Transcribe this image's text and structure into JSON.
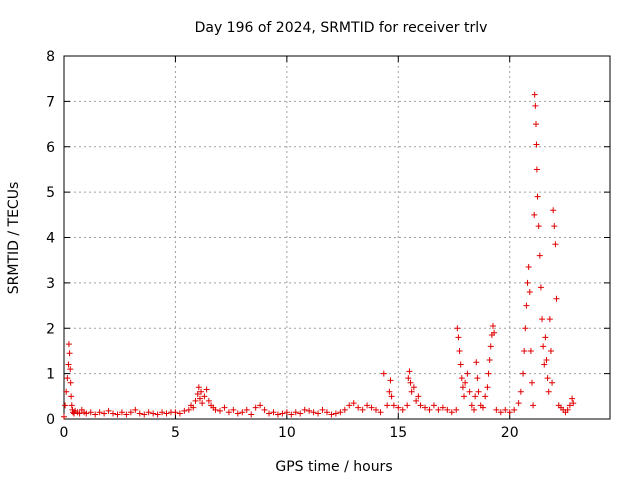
{
  "chart_data": {
    "type": "scatter",
    "title": "Day 196 of 2024, SRMTID for receiver trlv",
    "xlabel": "GPS time / hours",
    "ylabel": "SRMTID / TECUs",
    "xlim": [
      0,
      24.5
    ],
    "ylim": [
      0,
      8
    ],
    "xticks": [
      0,
      5,
      10,
      15,
      20
    ],
    "yticks": [
      0,
      1,
      2,
      3,
      4,
      5,
      6,
      7,
      8
    ],
    "xtick_labels": [
      "0",
      "5",
      "10",
      "15",
      "20"
    ],
    "ytick_labels": [
      "0",
      "1",
      "2",
      "3",
      "4",
      "5",
      "6",
      "7",
      "8"
    ],
    "grid": true,
    "marker": "+",
    "color": "#e00000",
    "series": [
      {
        "name": "SRMTID",
        "x": [
          0.0,
          0.05,
          0.1,
          0.15,
          0.2,
          0.22,
          0.25,
          0.28,
          0.3,
          0.32,
          0.35,
          0.38,
          0.4,
          0.45,
          0.5,
          0.6,
          0.7,
          0.8,
          0.9,
          1.0,
          1.2,
          1.4,
          1.6,
          1.8,
          2.0,
          2.2,
          2.4,
          2.6,
          2.8,
          3.0,
          3.2,
          3.4,
          3.6,
          3.8,
          4.0,
          4.2,
          4.4,
          4.6,
          4.8,
          5.0,
          5.2,
          5.4,
          5.6,
          5.7,
          5.8,
          5.9,
          6.0,
          6.05,
          6.1,
          6.15,
          6.2,
          6.3,
          6.4,
          6.5,
          6.6,
          6.7,
          6.8,
          7.0,
          7.2,
          7.4,
          7.6,
          7.8,
          8.0,
          8.2,
          8.4,
          8.6,
          8.8,
          9.0,
          9.2,
          9.4,
          9.6,
          9.8,
          10.0,
          10.2,
          10.4,
          10.6,
          10.8,
          11.0,
          11.2,
          11.4,
          11.6,
          11.8,
          12.0,
          12.2,
          12.4,
          12.6,
          12.8,
          13.0,
          13.2,
          13.4,
          13.6,
          13.8,
          14.0,
          14.2,
          14.35,
          14.5,
          14.6,
          14.65,
          14.7,
          14.8,
          15.0,
          15.2,
          15.4,
          15.45,
          15.5,
          15.55,
          15.6,
          15.7,
          15.8,
          15.9,
          16.0,
          16.2,
          16.4,
          16.6,
          16.8,
          17.0,
          17.2,
          17.4,
          17.6,
          17.65,
          17.7,
          17.75,
          17.8,
          17.85,
          17.9,
          17.95,
          18.0,
          18.1,
          18.2,
          18.3,
          18.4,
          18.45,
          18.5,
          18.55,
          18.6,
          18.7,
          18.8,
          18.9,
          19.0,
          19.05,
          19.1,
          19.15,
          19.2,
          19.25,
          19.3,
          19.4,
          19.6,
          19.8,
          20.0,
          20.2,
          20.4,
          20.5,
          20.6,
          20.65,
          20.7,
          20.75,
          20.8,
          20.85,
          20.9,
          20.95,
          21.0,
          21.05,
          21.1,
          21.12,
          21.15,
          21.18,
          21.2,
          21.22,
          21.25,
          21.3,
          21.35,
          21.4,
          21.45,
          21.5,
          21.55,
          21.6,
          21.65,
          21.7,
          21.75,
          21.8,
          21.85,
          21.9,
          21.95,
          22.0,
          22.05,
          22.1,
          22.2,
          22.3,
          22.4,
          22.5,
          22.6,
          22.7,
          22.8,
          22.85
        ],
        "y": [
          0.05,
          0.3,
          0.6,
          0.9,
          1.2,
          1.65,
          1.45,
          1.1,
          0.8,
          0.5,
          0.3,
          0.2,
          0.15,
          0.12,
          0.18,
          0.15,
          0.12,
          0.2,
          0.15,
          0.12,
          0.15,
          0.1,
          0.15,
          0.12,
          0.18,
          0.12,
          0.1,
          0.15,
          0.1,
          0.15,
          0.2,
          0.12,
          0.1,
          0.15,
          0.12,
          0.1,
          0.15,
          0.12,
          0.15,
          0.15,
          0.12,
          0.18,
          0.2,
          0.3,
          0.25,
          0.4,
          0.55,
          0.7,
          0.45,
          0.6,
          0.35,
          0.5,
          0.65,
          0.4,
          0.3,
          0.25,
          0.2,
          0.18,
          0.25,
          0.15,
          0.2,
          0.12,
          0.15,
          0.2,
          0.1,
          0.25,
          0.3,
          0.2,
          0.12,
          0.15,
          0.1,
          0.12,
          0.15,
          0.1,
          0.15,
          0.12,
          0.2,
          0.18,
          0.15,
          0.12,
          0.2,
          0.15,
          0.1,
          0.12,
          0.15,
          0.2,
          0.3,
          0.35,
          0.25,
          0.2,
          0.3,
          0.25,
          0.2,
          0.15,
          1.0,
          0.3,
          0.6,
          0.85,
          0.5,
          0.3,
          0.25,
          0.2,
          0.3,
          0.9,
          1.05,
          0.8,
          0.6,
          0.7,
          0.4,
          0.5,
          0.3,
          0.25,
          0.2,
          0.3,
          0.2,
          0.25,
          0.2,
          0.15,
          0.2,
          2.0,
          1.8,
          1.5,
          1.2,
          0.9,
          0.7,
          0.5,
          0.8,
          1.0,
          0.6,
          0.3,
          0.2,
          0.5,
          1.25,
          0.9,
          0.6,
          0.3,
          0.25,
          0.5,
          0.7,
          1.0,
          1.3,
          1.6,
          1.85,
          2.05,
          1.9,
          0.2,
          0.15,
          0.2,
          0.15,
          0.2,
          0.35,
          0.6,
          1.0,
          1.5,
          2.0,
          2.5,
          3.0,
          3.35,
          2.8,
          1.5,
          0.8,
          0.3,
          4.5,
          7.15,
          6.9,
          6.5,
          6.05,
          5.5,
          4.9,
          4.25,
          3.6,
          2.9,
          2.2,
          1.6,
          1.2,
          1.8,
          1.3,
          0.9,
          0.6,
          2.2,
          1.5,
          0.8,
          4.6,
          4.25,
          3.85,
          2.65,
          0.3,
          0.25,
          0.2,
          0.15,
          0.2,
          0.3,
          0.45,
          0.35
        ]
      }
    ]
  }
}
